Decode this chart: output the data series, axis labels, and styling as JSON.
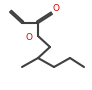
{
  "background_color": "#ffffff",
  "bond_color": "#404040",
  "atom_color_O": "#dd0000",
  "line_width": 1.5,
  "figsize": [
    0.92,
    0.9
  ],
  "dpi": 100
}
